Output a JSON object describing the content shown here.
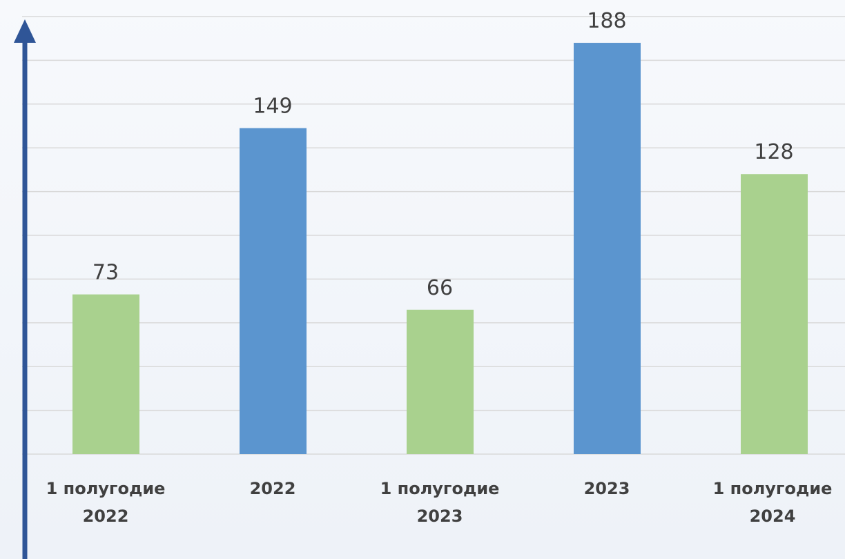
{
  "chart_data": {
    "type": "bar",
    "categories": [
      "1 полугодие 2022",
      "2022",
      "1 полугодие 2023",
      "2023",
      "1 полугодие 2024"
    ],
    "values": [
      73,
      149,
      66,
      188,
      128
    ],
    "colors": [
      "#a9d18e",
      "#5b95cf",
      "#a9d18e",
      "#5b95cf",
      "#a9d18e"
    ],
    "ylim": [
      0,
      200
    ],
    "yticks": [
      0,
      20,
      40,
      60,
      80,
      100,
      120,
      140,
      160,
      180,
      200
    ],
    "grid": true
  }
}
